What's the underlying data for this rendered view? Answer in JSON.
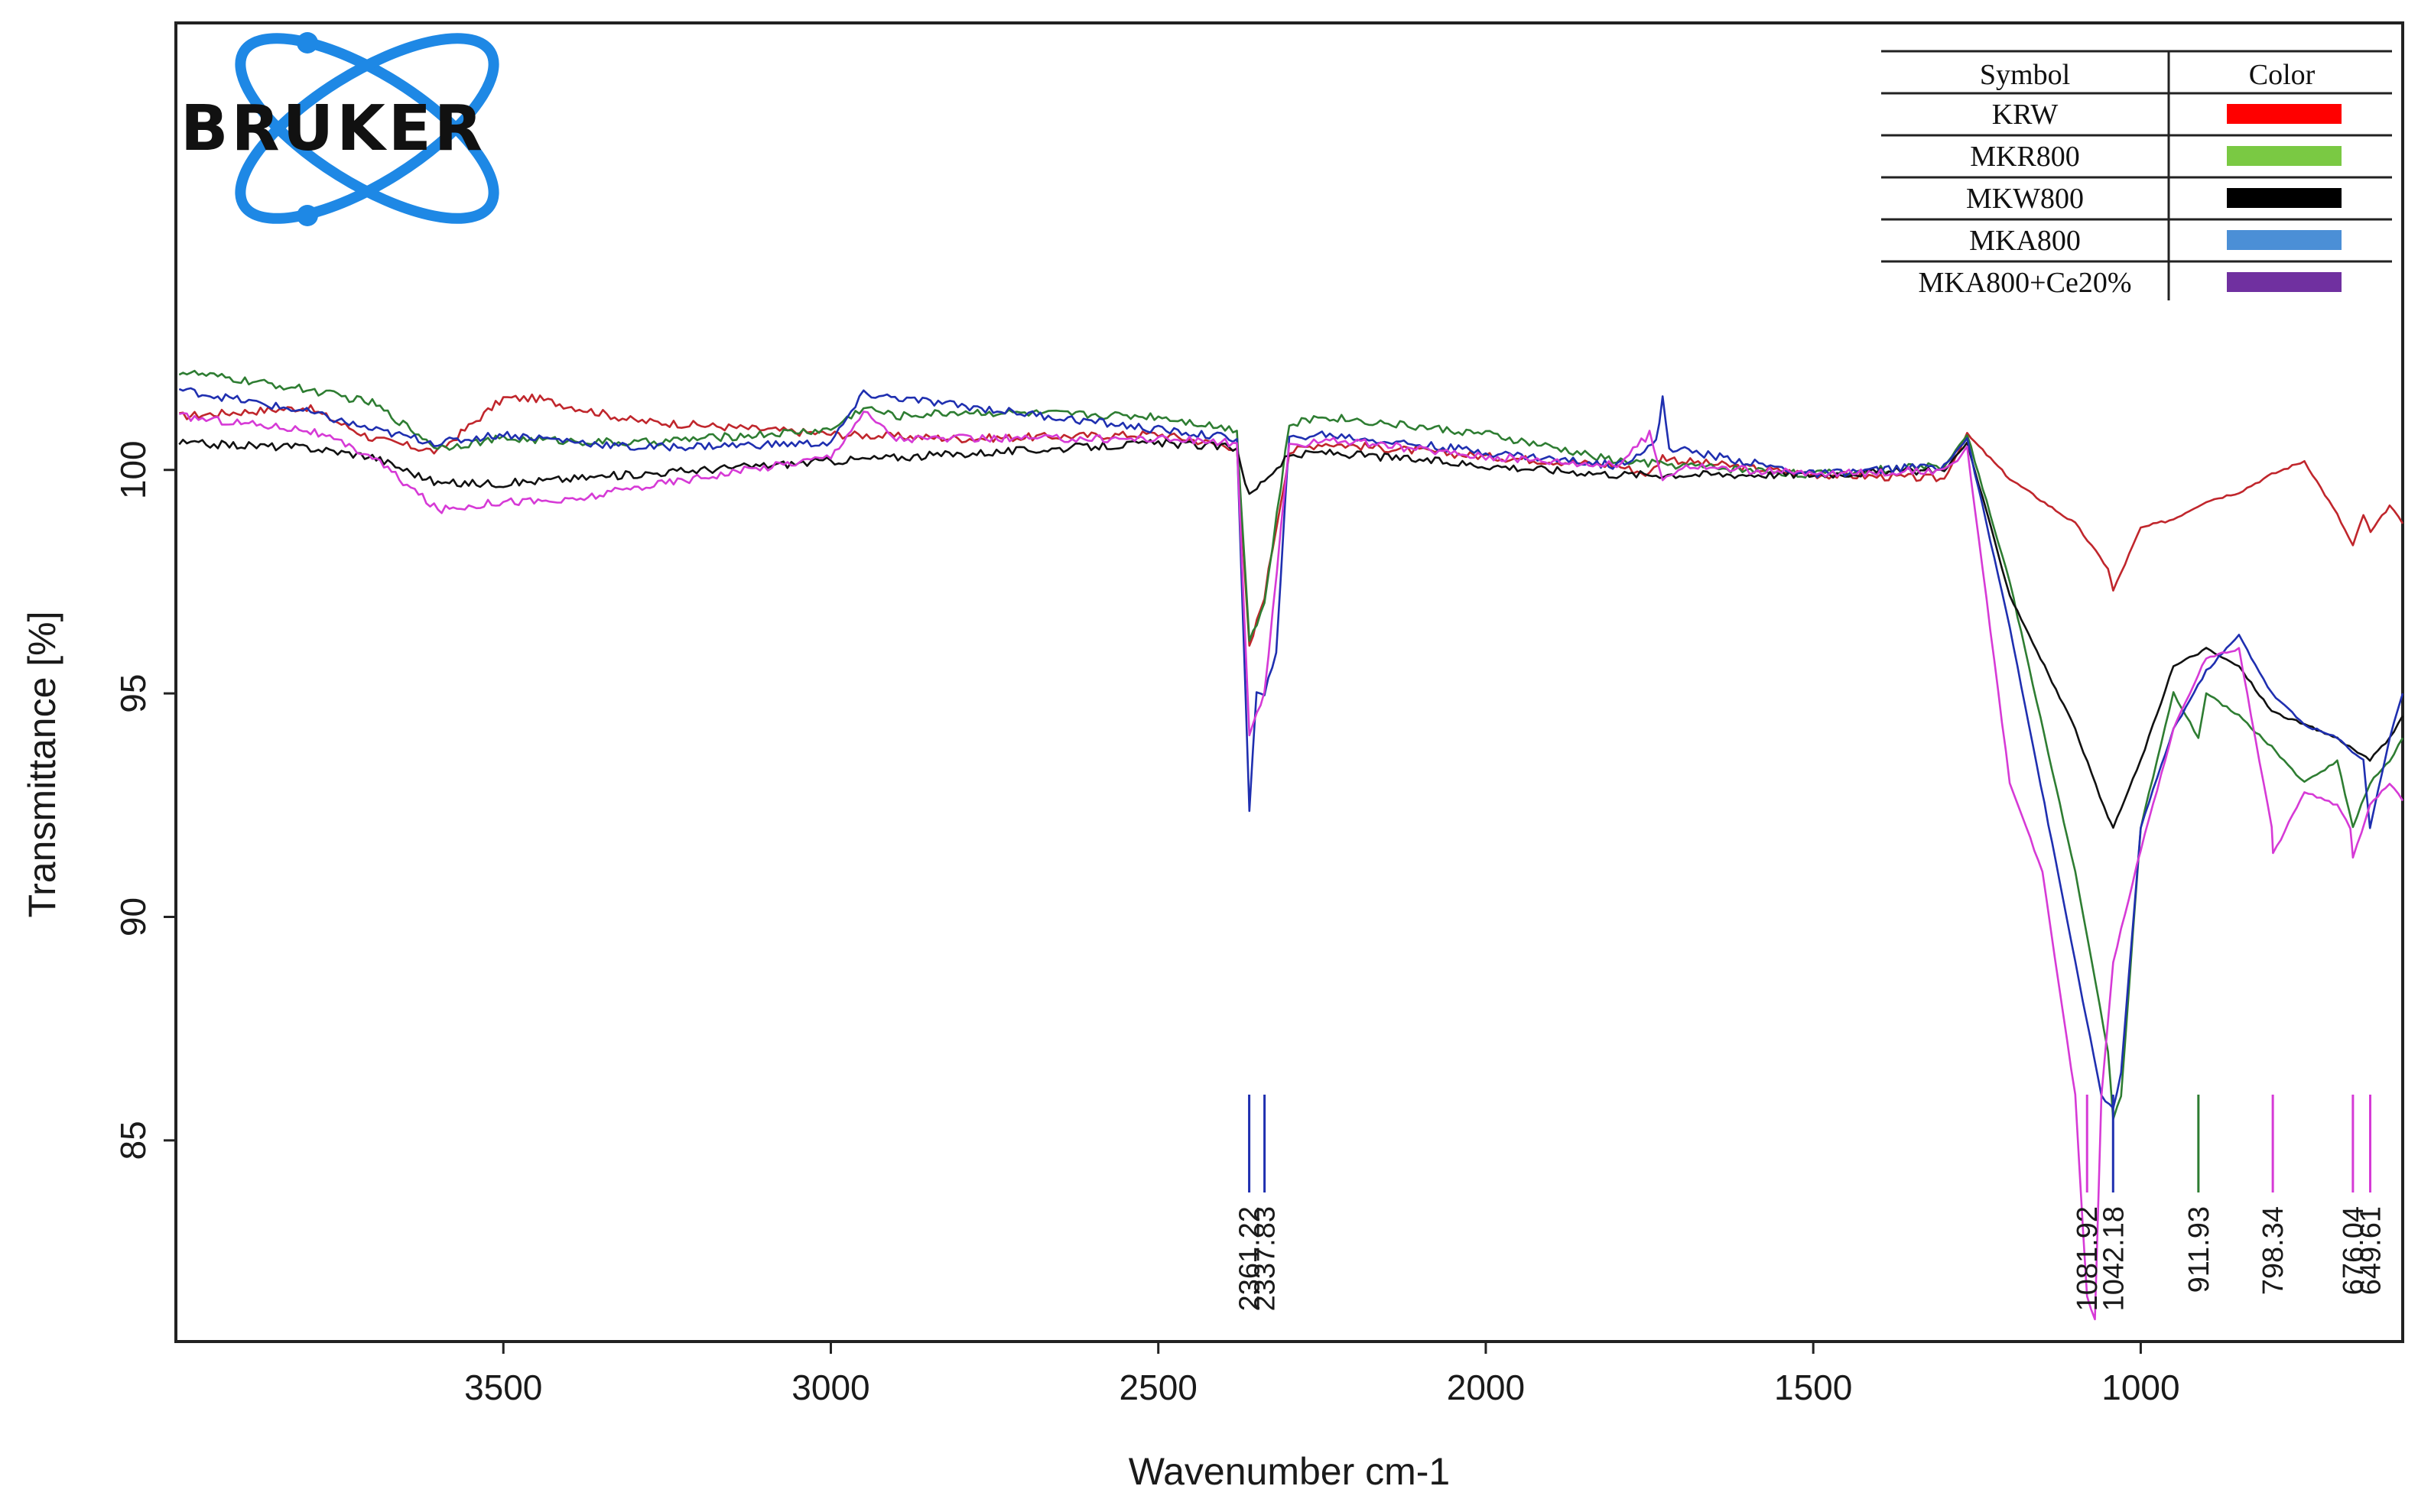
{
  "logo": {
    "brand": "BRUKER"
  },
  "chart_data": {
    "type": "line",
    "title": "",
    "xlabel": "Wavenumber cm-1",
    "ylabel": "Transmittance [%]",
    "xlim": [
      4000,
      600
    ],
    "ylim": [
      80.5,
      110
    ],
    "x_reversed": true,
    "grid": false,
    "legend_position": "top-right",
    "x_ticks": [
      3500,
      3000,
      2500,
      2000,
      1500,
      1000
    ],
    "y_ticks": [
      100,
      95,
      90,
      85
    ],
    "legend": {
      "header_symbol": "Symbol",
      "header_color": "Color",
      "entries": [
        {
          "label": "KRW",
          "color": "#ff0000"
        },
        {
          "label": "MKR800",
          "color": "#7ac943"
        },
        {
          "label": "MKW800",
          "color": "#000000"
        },
        {
          "label": "MKA800",
          "color": "#4b8fd6"
        },
        {
          "label": "MKA800+Ce20%",
          "color": "#7030a0"
        }
      ]
    },
    "series": [
      {
        "color": "#c0262c",
        "x": [
          3995,
          3800,
          3700,
          3600,
          3500,
          3450,
          3300,
          3000,
          2800,
          2500,
          2380,
          2361,
          2338,
          2300,
          2250,
          2000,
          1800,
          1750,
          1730,
          1700,
          1500,
          1300,
          1265,
          1200,
          1100,
          1050,
          1042,
          1000,
          950,
          900,
          850,
          800,
          750,
          700,
          676,
          660,
          649,
          620,
          600
        ],
        "y": [
          101.2,
          101.4,
          100.7,
          100.4,
          101.6,
          101.6,
          101.1,
          100.8,
          100.7,
          100.8,
          100.5,
          96.0,
          97.2,
          100.4,
          100.6,
          100.3,
          100.1,
          99.9,
          100.3,
          100.2,
          99.9,
          99.8,
          100.8,
          99.8,
          98.8,
          97.8,
          97.3,
          98.7,
          98.9,
          99.3,
          99.5,
          99.9,
          100.2,
          99.0,
          98.3,
          99.0,
          98.6,
          99.2,
          98.8
        ]
      },
      {
        "color": "#2e7d32",
        "x": [
          3995,
          3800,
          3700,
          3600,
          3500,
          3300,
          3000,
          2950,
          2900,
          2800,
          2500,
          2380,
          2361,
          2338,
          2300,
          2250,
          2000,
          1800,
          1500,
          1300,
          1265,
          1200,
          1100,
          1050,
          1042,
          1030,
          1000,
          950,
          912,
          900,
          850,
          800,
          750,
          700,
          676,
          650,
          620,
          600
        ],
        "y": [
          102.2,
          101.8,
          101.5,
          100.5,
          100.7,
          100.6,
          100.9,
          101.4,
          101.2,
          101.3,
          101.2,
          100.9,
          96.2,
          97.0,
          101.0,
          101.2,
          100.8,
          100.2,
          99.9,
          100.1,
          100.8,
          97.5,
          91.0,
          87.0,
          85.5,
          86.0,
          92.0,
          95.0,
          94.0,
          95.0,
          94.5,
          93.8,
          93.0,
          93.5,
          92.0,
          93.0,
          93.5,
          94.0
        ]
      },
      {
        "color": "#111111",
        "x": [
          3995,
          3800,
          3700,
          3600,
          3500,
          3000,
          2500,
          2380,
          2361,
          2338,
          2300,
          2250,
          2000,
          1800,
          1500,
          1300,
          1265,
          1200,
          1100,
          1050,
          1042,
          1000,
          950,
          900,
          850,
          800,
          750,
          700,
          650,
          620,
          600
        ],
        "y": [
          100.6,
          100.5,
          100.3,
          99.7,
          99.7,
          100.2,
          100.6,
          100.5,
          99.4,
          99.8,
          100.3,
          100.4,
          100.1,
          99.9,
          99.9,
          100.0,
          100.6,
          97.2,
          94.2,
          92.2,
          92.0,
          93.5,
          95.6,
          96.0,
          95.6,
          94.6,
          94.3,
          94.0,
          93.5,
          94.0,
          94.5
        ]
      },
      {
        "color": "#1f2fb0",
        "x": [
          3995,
          3800,
          3700,
          3600,
          3500,
          3300,
          3000,
          2950,
          2500,
          2380,
          2361,
          2350,
          2338,
          2320,
          2300,
          2250,
          2000,
          1800,
          1740,
          1730,
          1720,
          1500,
          1300,
          1265,
          1200,
          1100,
          1060,
          1042,
          1030,
          1000,
          950,
          900,
          850,
          800,
          750,
          700,
          660,
          650,
          620,
          600
        ],
        "y": [
          101.8,
          101.3,
          100.9,
          100.6,
          100.8,
          100.5,
          100.6,
          101.7,
          100.9,
          100.7,
          92.4,
          95.0,
          94.9,
          96.0,
          100.7,
          100.8,
          100.4,
          100.1,
          100.6,
          101.6,
          100.5,
          99.9,
          100.1,
          100.7,
          96.5,
          89.0,
          86.0,
          85.7,
          86.5,
          92.0,
          94.2,
          95.5,
          96.3,
          95.0,
          94.3,
          94.0,
          93.5,
          92.0,
          94.0,
          95.0
        ]
      },
      {
        "color": "#d63ad6",
        "x": [
          3995,
          3800,
          3700,
          3600,
          3500,
          3400,
          3300,
          3000,
          2950,
          2900,
          2500,
          2380,
          2361,
          2338,
          2300,
          2250,
          2000,
          1800,
          1750,
          1730,
          1700,
          1500,
          1300,
          1280,
          1265,
          1200,
          1150,
          1100,
          1082,
          1070,
          1060,
          1042,
          1000,
          950,
          900,
          850,
          800,
          798,
          750,
          700,
          680,
          676,
          650,
          620,
          600
        ],
        "y": [
          101.2,
          100.9,
          100.3,
          99.1,
          99.3,
          99.3,
          99.6,
          100.3,
          101.3,
          100.7,
          100.7,
          100.6,
          94.0,
          95.0,
          100.5,
          100.7,
          100.3,
          100.1,
          100.8,
          99.8,
          100.1,
          99.9,
          100.0,
          100.2,
          100.5,
          93.0,
          91.0,
          86.0,
          81.5,
          81.0,
          86.0,
          89.0,
          91.5,
          94.2,
          95.8,
          96.0,
          92.0,
          91.4,
          92.8,
          92.5,
          92.0,
          91.3,
          92.5,
          93.0,
          92.6
        ]
      }
    ],
    "peak_markers": [
      {
        "label": "2361.22",
        "x": 2361.22,
        "color": "#1f2fb0"
      },
      {
        "label": "2337.83",
        "x": 2337.83,
        "color": "#1f2fb0"
      },
      {
        "label": "1081.92",
        "x": 1081.92,
        "color": "#d63ad6"
      },
      {
        "label": "1042.18",
        "x": 1042.18,
        "color": "#1f2fb0"
      },
      {
        "label": "911.93",
        "x": 911.93,
        "color": "#2e7d32"
      },
      {
        "label": "798.34",
        "x": 798.34,
        "color": "#d63ad6"
      },
      {
        "label": "676.04",
        "x": 676.04,
        "color": "#d63ad6"
      },
      {
        "label": "649.61",
        "x": 649.61,
        "color": "#d63ad6"
      }
    ]
  }
}
